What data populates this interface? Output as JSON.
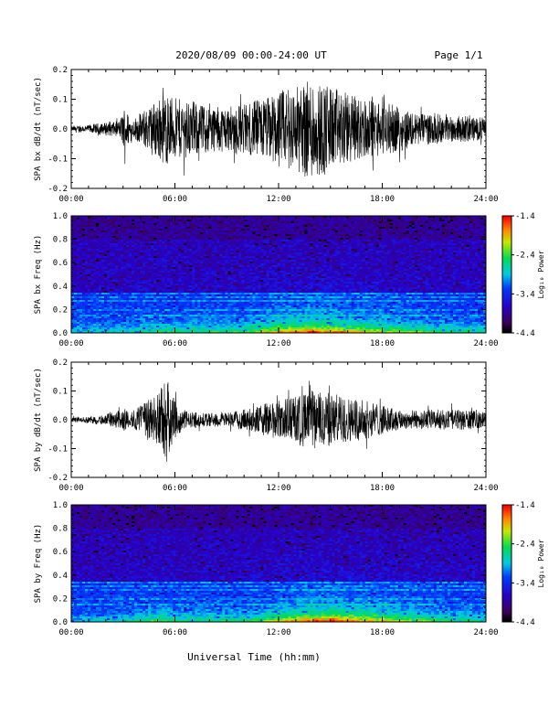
{
  "header": {
    "title": "2020/08/09  00:00-24:00 UT",
    "page": "Page 1/1"
  },
  "xaxis": {
    "label": "Universal Time (hh:mm)",
    "ticks": [
      "00:00",
      "06:00",
      "12:00",
      "18:00",
      "24:00"
    ],
    "range_hours": [
      0,
      24
    ]
  },
  "colorbar": {
    "label": "Log₁₀ Power",
    "ticks": [
      "-1.4",
      "-2.4",
      "-3.4",
      "-4.4"
    ],
    "range": [
      -4.4,
      -1.4
    ]
  },
  "chart_data": [
    {
      "type": "line",
      "ylabel": "SPA bx dB/dt (nT/sec)",
      "ylim": [
        -0.2,
        0.2
      ],
      "yticks": [
        "0.2",
        "0.1",
        "0.0",
        "-0.1",
        "-0.2"
      ],
      "xlim_hours": [
        0,
        24
      ],
      "description_envelope": {
        "x_hours": [
          0,
          1,
          2,
          2.8,
          3.1,
          3.5,
          4.5,
          5.0,
          5.5,
          6.0,
          7.0,
          8.0,
          9.0,
          10.0,
          11.0,
          12.0,
          13.0,
          14.0,
          14.5,
          15.0,
          16.0,
          17.0,
          18.0,
          19.0,
          20.0,
          21.0,
          22.0,
          23.0,
          24.0
        ],
        "amplitude": [
          0.012,
          0.015,
          0.025,
          0.03,
          0.09,
          0.03,
          0.09,
          0.12,
          0.14,
          0.12,
          0.11,
          0.09,
          0.09,
          0.1,
          0.12,
          0.15,
          0.17,
          0.2,
          0.19,
          0.17,
          0.14,
          0.12,
          0.1,
          0.09,
          0.06,
          0.06,
          0.05,
          0.05,
          0.04
        ]
      }
    },
    {
      "type": "heatmap",
      "ylabel": "SPA bx Freq (Hz)",
      "ylim": [
        0.0,
        1.0
      ],
      "yticks": [
        "1.0",
        "0.8",
        "0.6",
        "0.4",
        "0.2",
        "0.0"
      ],
      "xlim_hours": [
        0,
        24
      ],
      "zlim": [
        -4.4,
        -1.4
      ]
    },
    {
      "type": "line",
      "ylabel": "SPA by dB/dt (nT/sec)",
      "ylim": [
        -0.2,
        0.2
      ],
      "yticks": [
        "0.2",
        "0.1",
        "0.0",
        "-0.1",
        "-0.2"
      ],
      "xlim_hours": [
        0,
        24
      ],
      "description_envelope": {
        "x_hours": [
          0,
          1,
          2,
          2.5,
          3.0,
          3.5,
          4.0,
          4.5,
          5.0,
          5.5,
          6.0,
          6.5,
          7.0,
          8.0,
          9.0,
          10.0,
          11.0,
          12.0,
          13.0,
          14.0,
          15.0,
          16.0,
          17.0,
          18.0,
          19.0,
          20.0,
          21.0,
          22.0,
          23.0,
          24.0
        ],
        "amplitude": [
          0.01,
          0.012,
          0.02,
          0.03,
          0.05,
          0.03,
          0.06,
          0.09,
          0.11,
          0.17,
          0.08,
          0.04,
          0.03,
          0.03,
          0.03,
          0.04,
          0.06,
          0.08,
          0.1,
          0.12,
          0.11,
          0.09,
          0.08,
          0.06,
          0.04,
          0.04,
          0.04,
          0.04,
          0.04,
          0.03
        ]
      }
    },
    {
      "type": "heatmap",
      "ylabel": "SPA by Freq (Hz)",
      "ylim": [
        0.0,
        1.0
      ],
      "yticks": [
        "1.0",
        "0.8",
        "0.6",
        "0.4",
        "0.2",
        "0.0"
      ],
      "xlim_hours": [
        0,
        24
      ],
      "zlim": [
        -4.4,
        -1.4
      ]
    }
  ]
}
